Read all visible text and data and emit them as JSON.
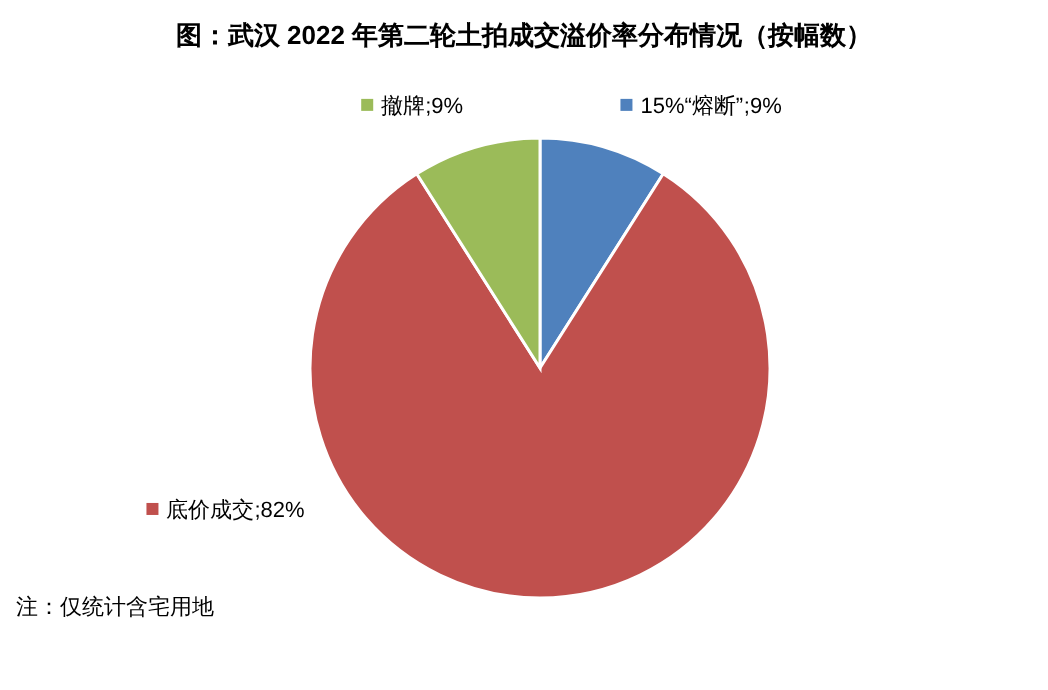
{
  "chart_data": {
    "type": "pie",
    "title": "图：武汉 2022 年第二轮土拍成交溢价率分布情况（按幅数）",
    "categories": [
      "15%“熔断”",
      "底价成交",
      "撤牌"
    ],
    "values": [
      9,
      82,
      9
    ],
    "colors": [
      "#4f81bd",
      "#c0504d",
      "#9bbb59"
    ],
    "value_labels": [
      ";9%",
      ";82%",
      ";9%"
    ],
    "legend": "top",
    "annotations": [
      "注：仅统计含宅用地"
    ]
  }
}
